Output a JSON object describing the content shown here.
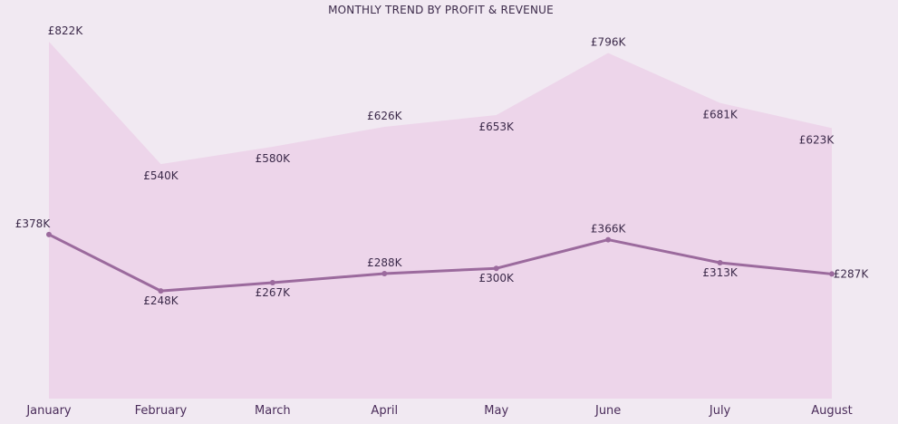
{
  "chart_data": {
    "type": "area",
    "title": "MONTHLY TREND BY PROFIT & REVENUE",
    "categories": [
      "January",
      "February",
      "March",
      "April",
      "May",
      "June",
      "July",
      "August"
    ],
    "series": [
      {
        "type": "area",
        "values": [
          822,
          540,
          580,
          626,
          653,
          796,
          681,
          623
        ],
        "labels": [
          "£822K",
          "£540K",
          "£580K",
          "£626K",
          "£653K",
          "£796K",
          "£681K",
          "£623K"
        ],
        "color": "#edd5ea"
      },
      {
        "type": "line",
        "values": [
          378,
          248,
          267,
          288,
          300,
          366,
          313,
          287
        ],
        "labels": [
          "£378K",
          "£248K",
          "£267K",
          "£288K",
          "£300K",
          "£366K",
          "£313K",
          "£287K"
        ],
        "color": "#9b6a9d"
      }
    ],
    "ylim": [
      0,
      822
    ],
    "grid": false,
    "legend": "none"
  }
}
